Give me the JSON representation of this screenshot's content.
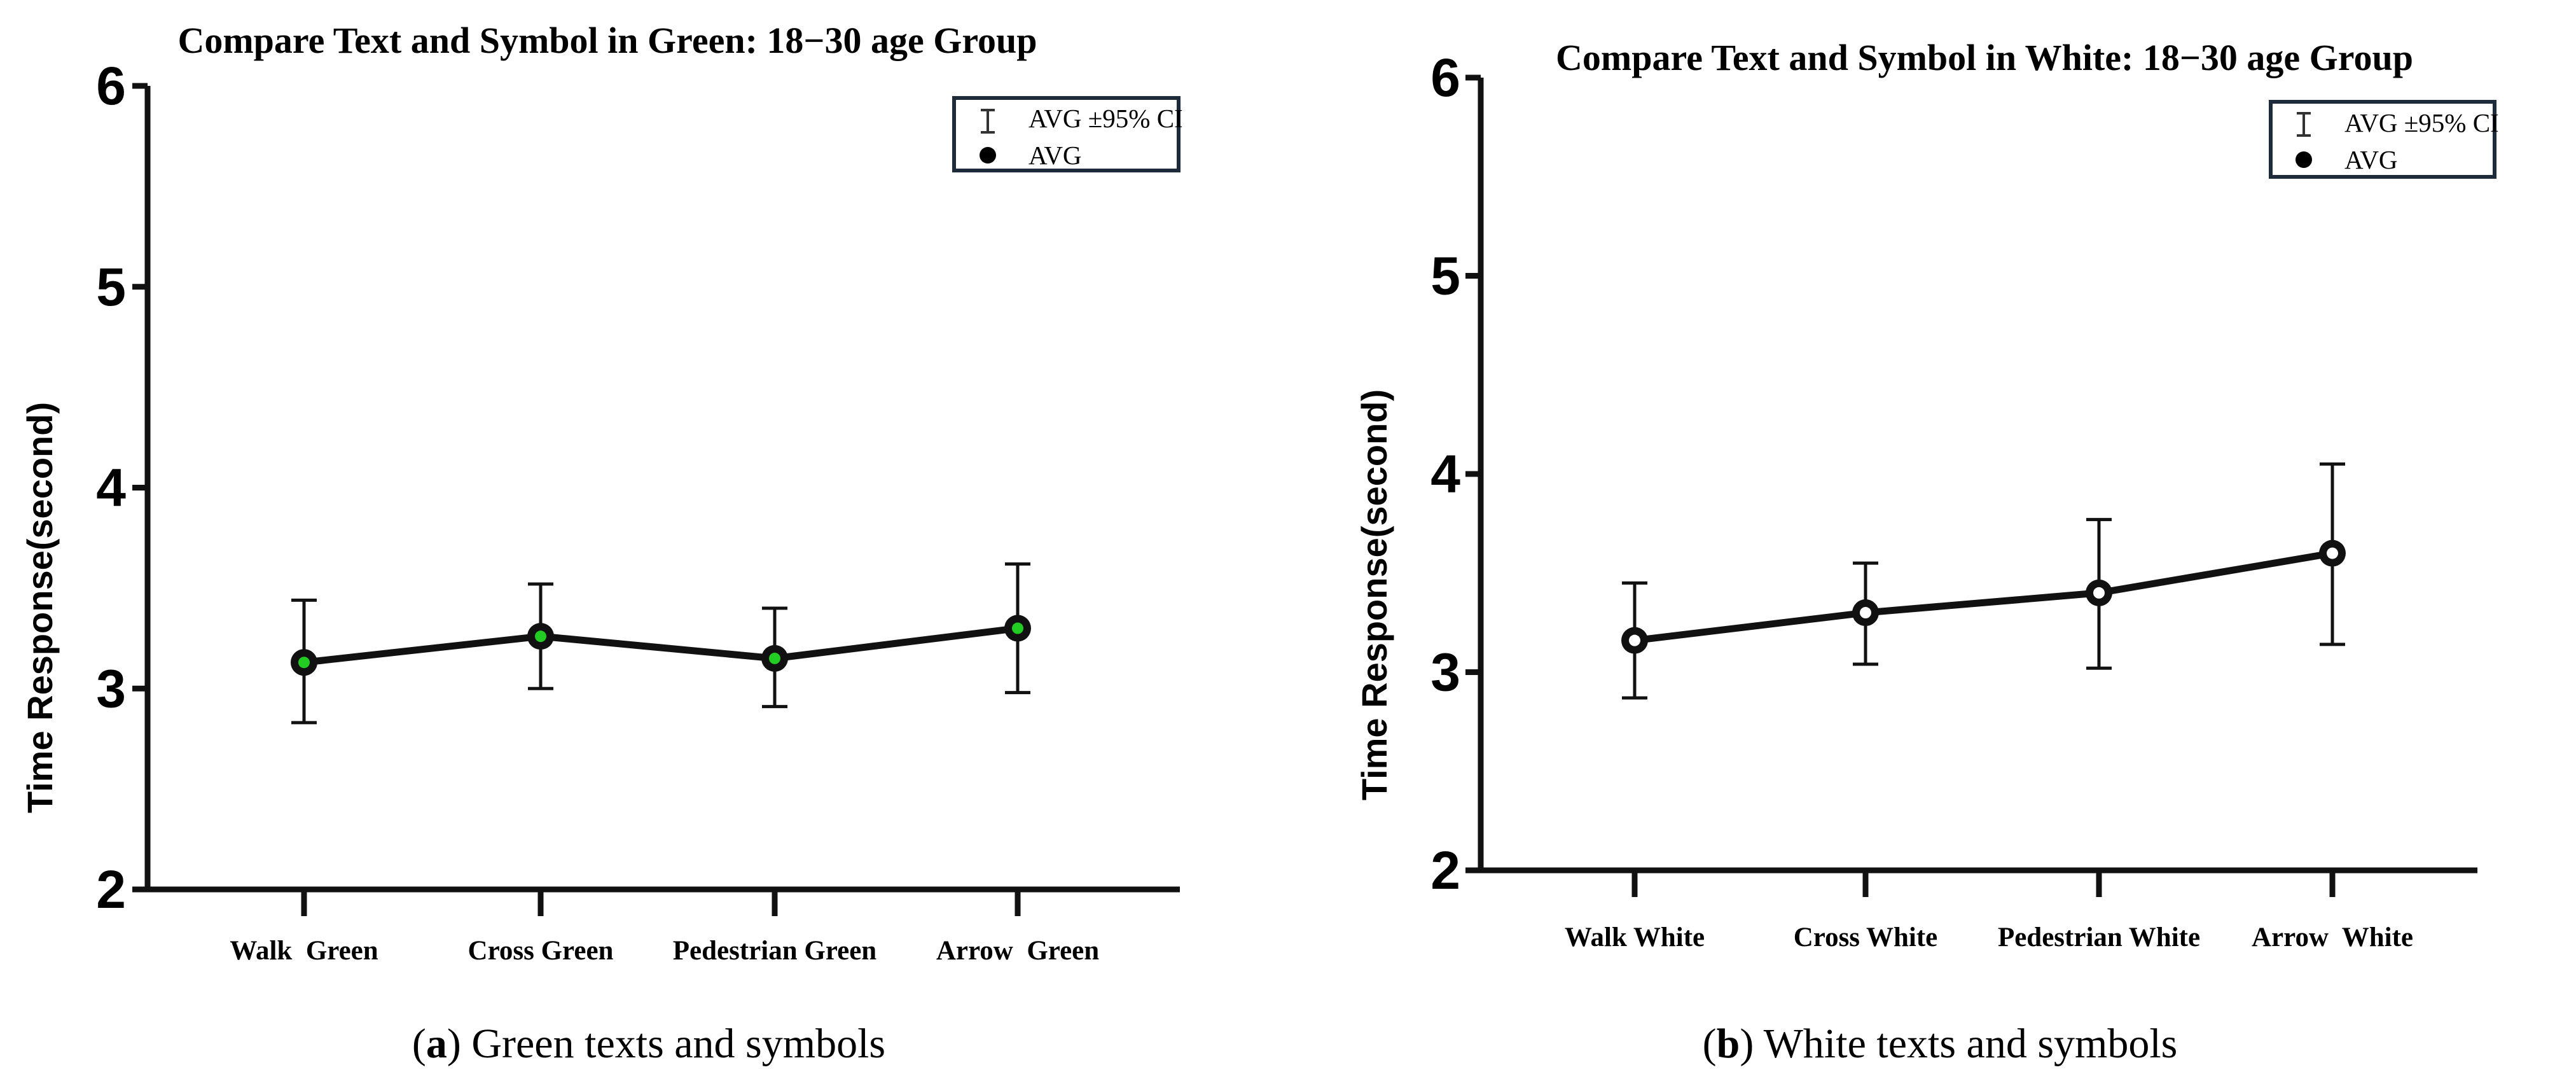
{
  "chart_data": [
    {
      "type": "line",
      "panel_letter": "a",
      "caption": "Green texts and symbols",
      "title": "Compare Text and Symbol in Green: 18−30 age Group",
      "ylabel": "Time Response(second)",
      "xlabel": "",
      "ylim": [
        2,
        6
      ],
      "yticks": [
        "2",
        "3",
        "4",
        "5",
        "6"
      ],
      "categories": [
        "Walk  Green",
        "Cross Green",
        "Pedestrian Green",
        "Arrow  Green"
      ],
      "series": [
        {
          "name": "AVG",
          "values": [
            3.13,
            3.26,
            3.15,
            3.3
          ],
          "ci_low": [
            2.83,
            3.0,
            2.91,
            2.98
          ],
          "ci_high": [
            3.44,
            3.52,
            3.4,
            3.62
          ]
        }
      ],
      "marker_center_color": "#22cc22",
      "legend": {
        "placement": "top-right",
        "entries": [
          "AVG ±95% CI",
          "AVG"
        ]
      }
    },
    {
      "type": "line",
      "panel_letter": "b",
      "caption": "White texts and symbols",
      "title": "Compare Text and Symbol in White: 18−30 age Group",
      "ylabel": "Time Response(second)",
      "xlabel": "",
      "ylim": [
        2,
        6
      ],
      "yticks": [
        "2",
        "3",
        "4",
        "5",
        "6"
      ],
      "categories": [
        "Walk White",
        "Cross White",
        "Pedestrian White",
        "Arrow  White"
      ],
      "series": [
        {
          "name": "AVG",
          "values": [
            3.16,
            3.3,
            3.4,
            3.6
          ],
          "ci_low": [
            2.87,
            3.04,
            3.02,
            3.14
          ],
          "ci_high": [
            3.45,
            3.55,
            3.77,
            4.05
          ]
        }
      ],
      "marker_center_color": "#ffffff",
      "legend": {
        "placement": "top-right",
        "entries": [
          "AVG ±95% CI",
          "AVG"
        ]
      }
    }
  ]
}
